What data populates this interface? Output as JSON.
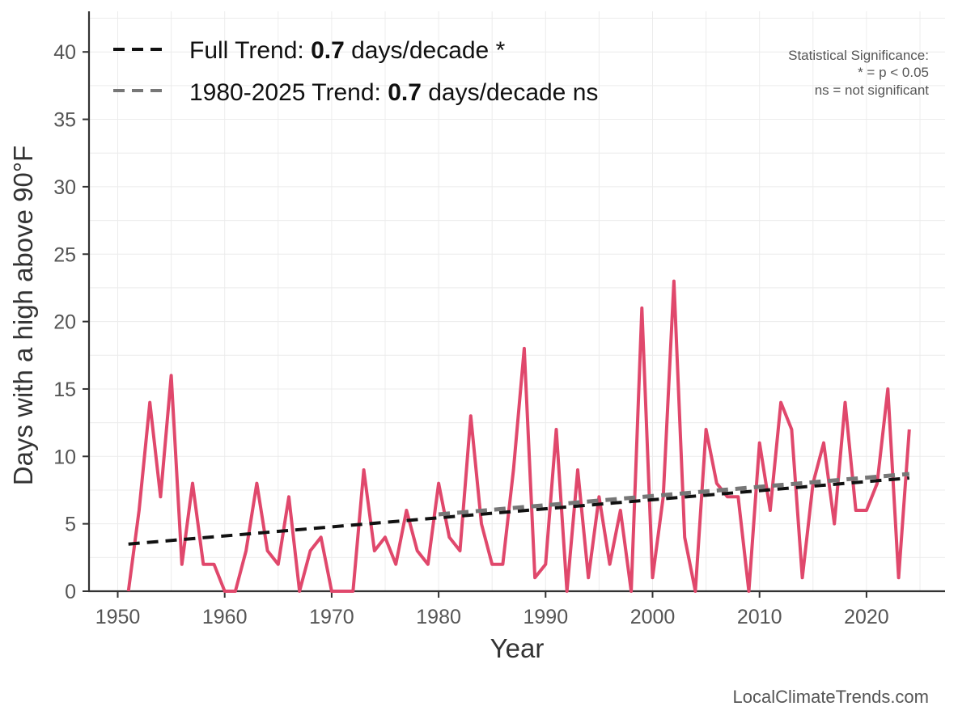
{
  "chart_data": {
    "type": "line",
    "xlabel": "Year",
    "ylabel": "Days with a high above 90°F",
    "xlim": [
      1947.5,
      2028
    ],
    "ylim": [
      0,
      43
    ],
    "x_ticks": [
      1950,
      1960,
      1970,
      1980,
      1990,
      2000,
      2010,
      2020
    ],
    "y_ticks": [
      0,
      5,
      10,
      15,
      20,
      25,
      30,
      35,
      40
    ],
    "grid": true,
    "legend_position": "top-left",
    "series": [
      {
        "color": "#e0486c",
        "x": [
          1951,
          1952,
          1953,
          1954,
          1955,
          1956,
          1957,
          1958,
          1959,
          1960,
          1961,
          1962,
          1963,
          1964,
          1965,
          1966,
          1967,
          1968,
          1969,
          1970,
          1971,
          1972,
          1973,
          1974,
          1975,
          1976,
          1977,
          1978,
          1979,
          1980,
          1981,
          1982,
          1983,
          1984,
          1985,
          1986,
          1987,
          1988,
          1989,
          1990,
          1991,
          1992,
          1993,
          1994,
          1995,
          1996,
          1997,
          1998,
          1999,
          2000,
          2001,
          2002,
          2003,
          2004,
          2005,
          2006,
          2007,
          2008,
          2009,
          2010,
          2011,
          2012,
          2013,
          2014,
          2015,
          2016,
          2017,
          2018,
          2019,
          2020,
          2021,
          2022,
          2023,
          2024
        ],
        "values": [
          0,
          6,
          14,
          7,
          16,
          2,
          8,
          2,
          2,
          0,
          0,
          3,
          8,
          3,
          2,
          7,
          0,
          3,
          4,
          0,
          0,
          0,
          9,
          3,
          4,
          2,
          6,
          3,
          2,
          8,
          4,
          3,
          13,
          5,
          2,
          2,
          9,
          18,
          1,
          2,
          12,
          0,
          9,
          1,
          7,
          2,
          6,
          0,
          21,
          1,
          7,
          23,
          4,
          0,
          12,
          8,
          7,
          7,
          0,
          11,
          6,
          14,
          12,
          1,
          8,
          11,
          5,
          14,
          6,
          6,
          8,
          15,
          1,
          12
        ]
      },
      {
        "name": "Full Trend",
        "style": "dashed",
        "color": "#111111",
        "x": [
          1951,
          2024
        ],
        "values": [
          3.5,
          8.4
        ]
      },
      {
        "name": "1980-2025 Trend",
        "style": "dashed",
        "color": "#777777",
        "x": [
          1980,
          2024
        ],
        "values": [
          5.7,
          8.7
        ]
      }
    ]
  },
  "legend": [
    {
      "prefix": "Full Trend: ",
      "value": "0.7",
      "suffix": " days/decade *",
      "color": "#111111"
    },
    {
      "prefix": "1980-2025 Trend: ",
      "value": "0.7",
      "suffix": " days/decade ns",
      "color": "#777777"
    }
  ],
  "significance_note": [
    "Statistical Significance:",
    "* = p < 0.05",
    "ns = not significant"
  ],
  "credit": "LocalClimateTrends.com"
}
